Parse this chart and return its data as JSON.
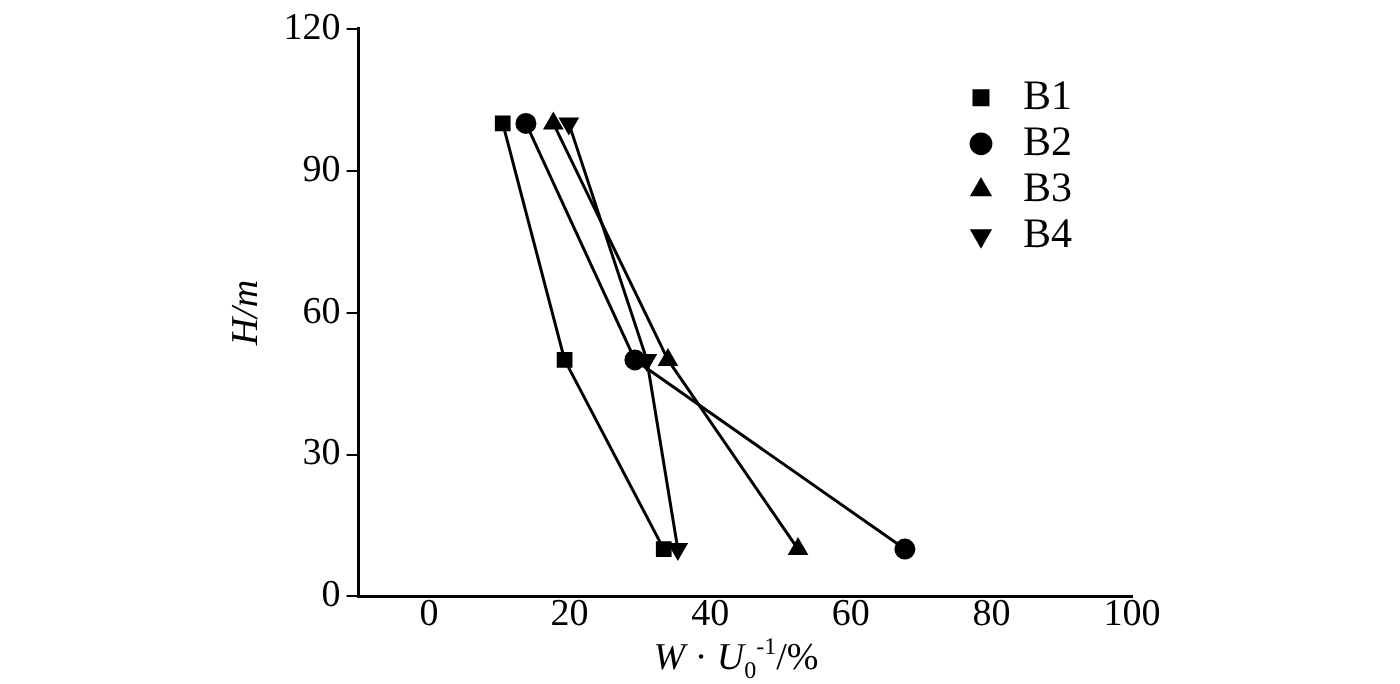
{
  "chart_data": {
    "type": "line",
    "xlabel": "W · U$_{0}$$^{-1}$/%",
    "ylabel": "H/m",
    "xlim": [
      -10,
      100
    ],
    "xticks": [
      0,
      20,
      40,
      60,
      80,
      100
    ],
    "ylim": [
      0,
      120
    ],
    "yticks": [
      0,
      30,
      60,
      90,
      120
    ],
    "legend": "top right",
    "grid": false,
    "line_style": "solid",
    "series": [
      {
        "name": "B1",
        "color": "#000000",
        "marker": "square",
        "x": [
          10.5,
          19.3,
          33.4
        ],
        "values": [
          100,
          50,
          10
        ]
      },
      {
        "name": "B2",
        "color": "#000000",
        "marker": "circle",
        "x": [
          13.8,
          29.3,
          67.7
        ],
        "values": [
          100,
          50,
          10
        ]
      },
      {
        "name": "B3",
        "color": "#000000",
        "marker": "triangle",
        "x": [
          17.7,
          34,
          52.5
        ],
        "values": [
          100,
          50,
          10
        ]
      },
      {
        "name": "B4",
        "color": "#000000",
        "marker": "triangle-down",
        "x": [
          19.9,
          31,
          35.4
        ],
        "values": [
          100,
          50,
          10
        ]
      }
    ]
  }
}
